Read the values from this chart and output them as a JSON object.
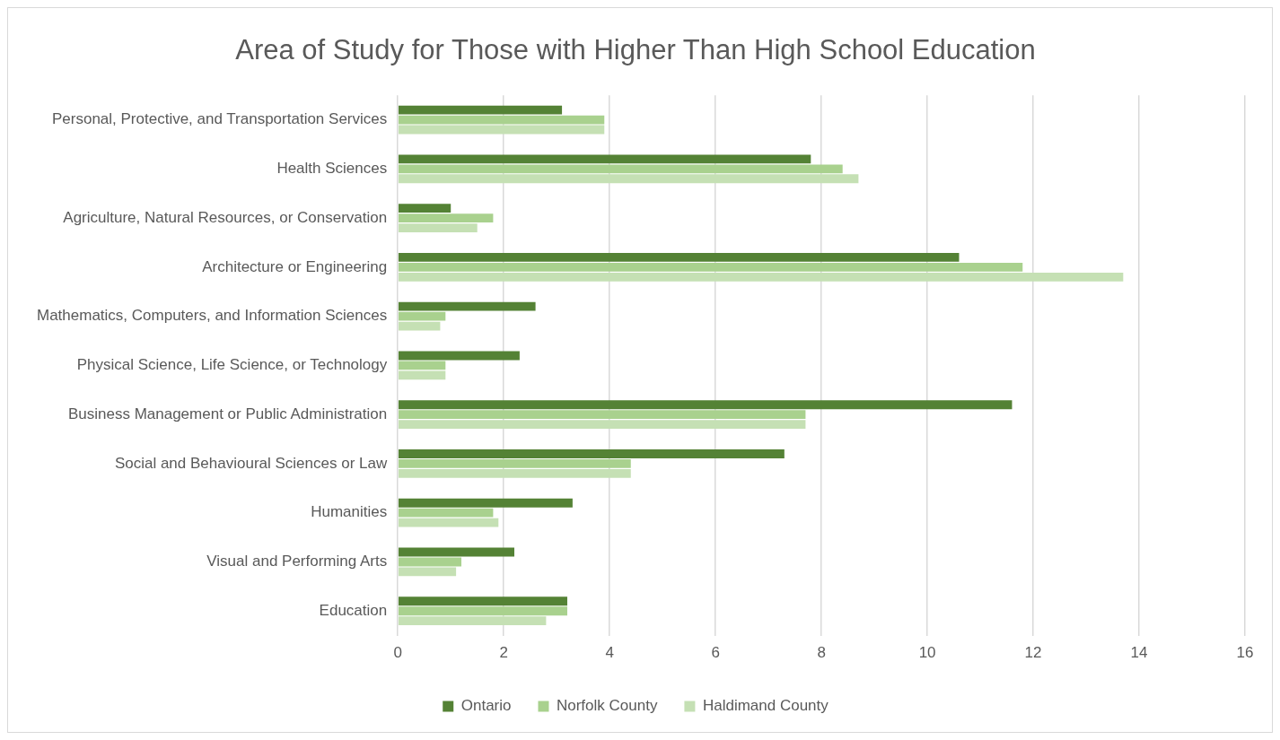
{
  "chart_data": {
    "type": "bar",
    "orientation": "horizontal",
    "title": "Area of Study for Those with Higher Than High School Education",
    "categories": [
      "Personal, Protective, and Transportation Services",
      "Health Sciences",
      "Agriculture, Natural Resources, or Conservation",
      "Architecture or Engineering",
      "Mathematics, Computers, and Information Sciences",
      "Physical Science, Life Science, or Technology",
      "Business Management or Public Administration",
      "Social and Behavioural Sciences or Law",
      "Humanities",
      "Visual and Performing Arts",
      "Education"
    ],
    "series": [
      {
        "name": "Ontario",
        "color": "#548235",
        "values": [
          3.1,
          7.8,
          1.0,
          10.6,
          2.6,
          2.3,
          11.6,
          7.3,
          3.3,
          2.2,
          3.2
        ]
      },
      {
        "name": "Norfolk County",
        "color": "#a9d18e",
        "values": [
          3.9,
          8.4,
          1.8,
          11.8,
          0.9,
          0.9,
          7.7,
          4.4,
          1.8,
          1.2,
          3.2
        ]
      },
      {
        "name": "Haldimand County",
        "color": "#c5e0b4",
        "values": [
          3.9,
          8.7,
          1.5,
          13.7,
          0.8,
          0.9,
          7.7,
          4.4,
          1.9,
          1.1,
          2.8
        ]
      }
    ],
    "xlim": [
      0,
      16
    ],
    "xticks": [
      0,
      2,
      4,
      6,
      8,
      10,
      12,
      14,
      16
    ],
    "grid": "x",
    "legend": "bottom"
  }
}
